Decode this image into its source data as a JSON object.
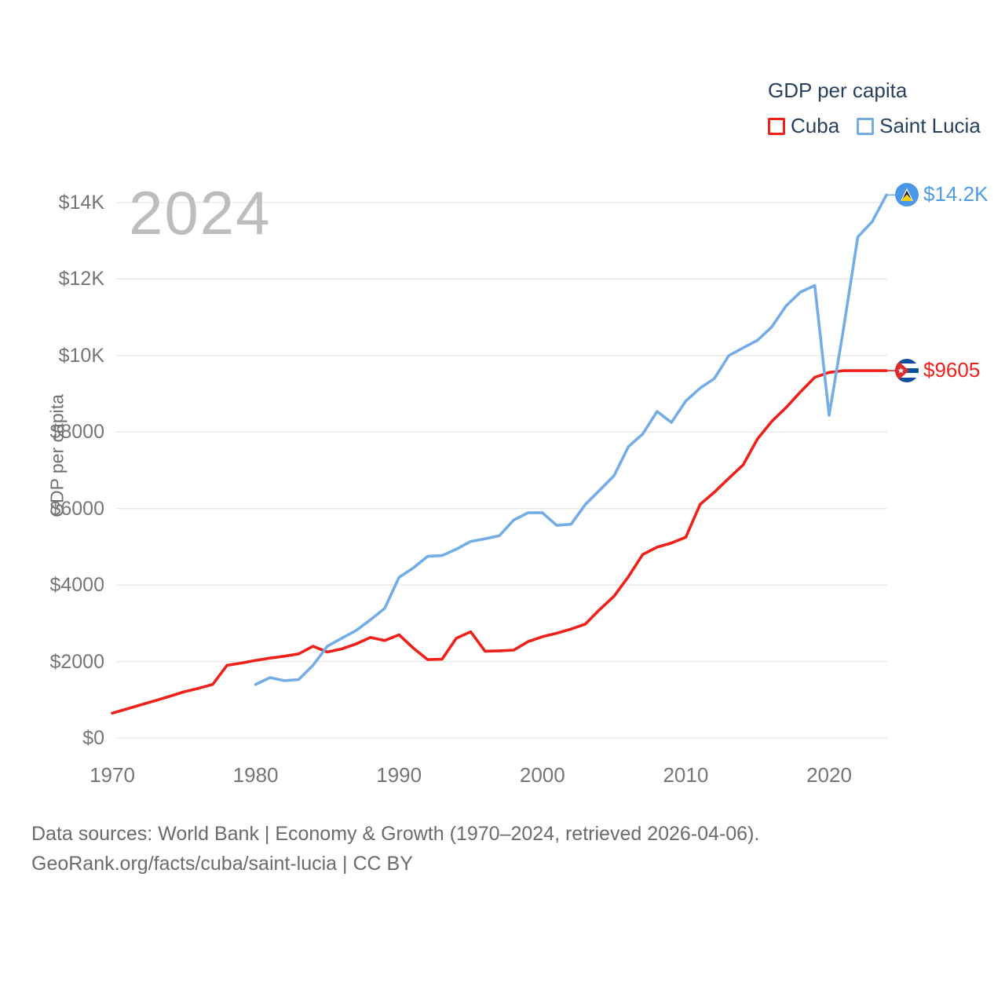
{
  "legend": {
    "title": "GDP per capita",
    "items": [
      {
        "label": "Cuba",
        "color": "#ee2019"
      },
      {
        "label": "Saint Lucia",
        "color": "#74ace6"
      }
    ]
  },
  "watermark": "2024",
  "y_axis": {
    "title": "GDP per capita",
    "ticks": [
      {
        "value": 0,
        "label": "$0"
      },
      {
        "value": 2000,
        "label": "$2000"
      },
      {
        "value": 4000,
        "label": "$4000"
      },
      {
        "value": 6000,
        "label": "$6000"
      },
      {
        "value": 8000,
        "label": "$8000"
      },
      {
        "value": 10000,
        "label": "$10K"
      },
      {
        "value": 12000,
        "label": "$12K"
      },
      {
        "value": 14000,
        "label": "$14K"
      }
    ]
  },
  "x_axis": {
    "ticks": [
      {
        "value": 1970,
        "label": "1970"
      },
      {
        "value": 1980,
        "label": "1980"
      },
      {
        "value": 1990,
        "label": "1990"
      },
      {
        "value": 2000,
        "label": "2000"
      },
      {
        "value": 2010,
        "label": "2010"
      },
      {
        "value": 2020,
        "label": "2020"
      }
    ]
  },
  "end_labels": [
    {
      "series": "Saint Lucia",
      "label": "$14.2K",
      "color": "#4f9be4"
    },
    {
      "series": "Cuba",
      "label": "$9605",
      "color": "#ee2019"
    }
  ],
  "footer": {
    "line1": "Data sources: World Bank | Economy & Growth (1970–2024, retrieved 2026-04-06).",
    "line2": "GeoRank.org/facts/cuba/saint-lucia | CC BY"
  },
  "chart_data": {
    "type": "line",
    "title": "GDP per capita",
    "xlabel": "",
    "ylabel": "GDP per capita",
    "xlim": [
      1970,
      2024
    ],
    "ylim": [
      0,
      14000
    ],
    "grid": "horizontal",
    "legend_position": "top-right",
    "series": [
      {
        "name": "Cuba",
        "color": "#ee2019",
        "x": [
          1970,
          1971,
          1972,
          1973,
          1974,
          1975,
          1976,
          1977,
          1978,
          1979,
          1980,
          1981,
          1982,
          1983,
          1984,
          1985,
          1986,
          1987,
          1988,
          1989,
          1990,
          1991,
          1992,
          1993,
          1994,
          1995,
          1996,
          1997,
          1998,
          1999,
          2000,
          2001,
          2002,
          2003,
          2004,
          2005,
          2006,
          2007,
          2008,
          2009,
          2010,
          2011,
          2012,
          2013,
          2014,
          2015,
          2016,
          2017,
          2018,
          2019,
          2020,
          2021,
          2022,
          2023,
          2024
        ],
        "values": [
          650,
          760,
          870,
          980,
          1090,
          1210,
          1300,
          1400,
          1900,
          1960,
          2030,
          2090,
          2140,
          2200,
          2400,
          2250,
          2330,
          2460,
          2630,
          2550,
          2700,
          2350,
          2050,
          2060,
          2610,
          2780,
          2270,
          2280,
          2300,
          2520,
          2650,
          2740,
          2850,
          2980,
          3360,
          3710,
          4220,
          4800,
          4990,
          5100,
          5250,
          6110,
          6430,
          6790,
          7140,
          7820,
          8280,
          8640,
          9050,
          9430,
          9560,
          9605,
          9605,
          9605,
          9605
        ]
      },
      {
        "name": "Saint Lucia",
        "color": "#74ace6",
        "x": [
          1980,
          1981,
          1982,
          1983,
          1984,
          1985,
          1986,
          1987,
          1988,
          1989,
          1990,
          1991,
          1992,
          1993,
          1994,
          1995,
          1996,
          1997,
          1998,
          1999,
          2000,
          2001,
          2002,
          2003,
          2004,
          2005,
          2006,
          2007,
          2008,
          2009,
          2010,
          2011,
          2012,
          2013,
          2014,
          2015,
          2016,
          2017,
          2018,
          2019,
          2020,
          2021,
          2022,
          2023,
          2024
        ],
        "values": [
          1400,
          1580,
          1500,
          1530,
          1900,
          2400,
          2610,
          2810,
          3090,
          3390,
          4200,
          4450,
          4750,
          4770,
          4940,
          5140,
          5210,
          5290,
          5700,
          5890,
          5890,
          5560,
          5590,
          6110,
          6480,
          6860,
          7620,
          7950,
          8540,
          8250,
          8810,
          9150,
          9400,
          10000,
          10200,
          10400,
          10750,
          11300,
          11660,
          11830,
          8440,
          10700,
          13100,
          13500,
          14200
        ]
      }
    ]
  }
}
